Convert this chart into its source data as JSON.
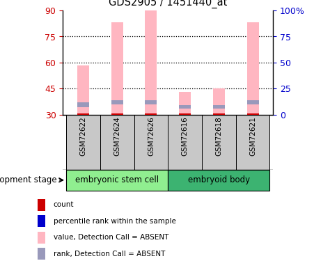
{
  "title": "GDS2905 / 1451440_at",
  "samples": [
    "GSM72622",
    "GSM72624",
    "GSM72626",
    "GSM72616",
    "GSM72618",
    "GSM72621"
  ],
  "group_labels": [
    "embryonic stem cell",
    "embryoid body"
  ],
  "group_color_light": "#90EE90",
  "group_color_dark": "#3CB371",
  "ylim_left": [
    30,
    90
  ],
  "ylim_right": [
    0,
    100
  ],
  "yticks_left": [
    30,
    45,
    60,
    75,
    90
  ],
  "yticks_right": [
    0,
    25,
    50,
    75,
    100
  ],
  "ytick_labels_right": [
    "0",
    "25",
    "50",
    "75",
    "100%"
  ],
  "pink_bar_tops": [
    58.5,
    83.0,
    90.0,
    43.0,
    45.0,
    83.0
  ],
  "blue_bar_bottoms": [
    34.5,
    36.0,
    36.0,
    33.5,
    33.5,
    36.0
  ],
  "blue_bar_heights": [
    2.5,
    2.5,
    2.5,
    2.0,
    2.0,
    2.5
  ],
  "red_bar_height": 0.6,
  "pink_color": "#FFB6C1",
  "blue_color": "#9999BB",
  "red_color": "#CC0000",
  "left_axis_color": "#CC0000",
  "right_axis_color": "#0000CC",
  "bar_width": 0.35,
  "sample_bg_color": "#C8C8C8",
  "dotted_yvals": [
    45,
    60,
    75
  ],
  "legend_items": [
    {
      "color": "#CC0000",
      "label": "count"
    },
    {
      "color": "#0000CC",
      "label": "percentile rank within the sample"
    },
    {
      "color": "#FFB6C1",
      "label": "value, Detection Call = ABSENT"
    },
    {
      "color": "#9999BB",
      "label": "rank, Detection Call = ABSENT"
    }
  ]
}
